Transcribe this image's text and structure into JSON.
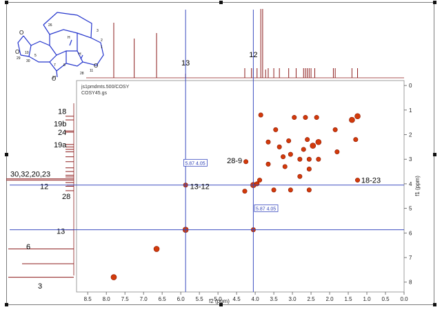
{
  "colors": {
    "spectrum": "#8b1a1a",
    "peak": "#d23a0a",
    "crosshair": "#3b4cc0",
    "structure": "#2233cc",
    "heteroatom": "#cc2200"
  },
  "header": {
    "line1": "js1pmdmts.500/COSY",
    "line2": "COSY45.gs"
  },
  "structure_labels": [
    "26",
    "H",
    "H",
    "28",
    "7",
    "8",
    "10",
    "11",
    "1",
    "2",
    "3",
    "5",
    "27",
    "29",
    "30",
    "O",
    "O",
    "O",
    "O"
  ],
  "top_trace_labels": [
    "13",
    "12"
  ],
  "left_trace_labels": [
    "18",
    "19b",
    "24",
    "19a",
    "30,32,20,23",
    "12",
    "28",
    "13",
    "6",
    "3"
  ],
  "chart_data": {
    "type": "scatter",
    "title": "",
    "xlabel": "f2 (ppm)",
    "ylabel": "f1 (ppm)",
    "xlim": [
      8.8,
      0.0
    ],
    "ylim": [
      8.4,
      -0.2
    ],
    "x_reversed": true,
    "y_reversed": true,
    "xticks": [
      "8.5",
      "8.0",
      "7.5",
      "7.0",
      "6.5",
      "6.0",
      "5.5",
      "5.0",
      "4.5",
      "4.0",
      "3.5",
      "3.0",
      "2.5",
      "2.0",
      "1.5",
      "1.0",
      "0.5",
      "0.0"
    ],
    "yticks": [
      "0",
      "1",
      "2",
      "3",
      "4",
      "5",
      "6",
      "7",
      "8"
    ],
    "crosshairs": {
      "x": [
        5.87,
        4.05
      ],
      "y": [
        4.05,
        5.87
      ]
    },
    "readouts": [
      "5.87 4.05",
      "5.87 4.05"
    ],
    "annotations": [
      "13-12",
      "28-9",
      "18-23"
    ],
    "peaks": [
      {
        "x": 7.8,
        "y": 7.8
      },
      {
        "x": 6.65,
        "y": 6.65
      },
      {
        "x": 5.87,
        "y": 5.87
      },
      {
        "x": 5.87,
        "y": 4.05
      },
      {
        "x": 4.05,
        "y": 5.87
      },
      {
        "x": 4.25,
        "y": 3.1
      },
      {
        "x": 4.28,
        "y": 4.3
      },
      {
        "x": 4.05,
        "y": 4.05
      },
      {
        "x": 3.95,
        "y": 4.0
      },
      {
        "x": 3.88,
        "y": 3.85
      },
      {
        "x": 3.85,
        "y": 1.2
      },
      {
        "x": 3.65,
        "y": 2.3
      },
      {
        "x": 3.65,
        "y": 3.2
      },
      {
        "x": 3.5,
        "y": 4.25
      },
      {
        "x": 3.45,
        "y": 1.8
      },
      {
        "x": 3.35,
        "y": 2.5
      },
      {
        "x": 3.25,
        "y": 2.9
      },
      {
        "x": 3.2,
        "y": 3.3
      },
      {
        "x": 3.1,
        "y": 2.25
      },
      {
        "x": 3.05,
        "y": 2.8
      },
      {
        "x": 3.05,
        "y": 4.25
      },
      {
        "x": 2.95,
        "y": 1.3
      },
      {
        "x": 2.8,
        "y": 3.0
      },
      {
        "x": 2.8,
        "y": 3.7
      },
      {
        "x": 2.7,
        "y": 2.6
      },
      {
        "x": 2.65,
        "y": 1.3
      },
      {
        "x": 2.6,
        "y": 2.2
      },
      {
        "x": 2.55,
        "y": 3.0
      },
      {
        "x": 2.55,
        "y": 3.4
      },
      {
        "x": 2.55,
        "y": 4.25
      },
      {
        "x": 2.45,
        "y": 2.45
      },
      {
        "x": 2.35,
        "y": 1.3
      },
      {
        "x": 2.3,
        "y": 2.3
      },
      {
        "x": 2.3,
        "y": 3.0
      },
      {
        "x": 1.85,
        "y": 1.8
      },
      {
        "x": 1.8,
        "y": 2.7
      },
      {
        "x": 1.4,
        "y": 1.4
      },
      {
        "x": 1.3,
        "y": 2.2
      },
      {
        "x": 1.25,
        "y": 1.25
      },
      {
        "x": 1.25,
        "y": 3.85
      }
    ],
    "top_projection_peaks": [
      7.8,
      7.25,
      6.65,
      5.87,
      4.28,
      4.1,
      4.05,
      3.95,
      3.85,
      3.8,
      3.72,
      3.65,
      3.5,
      3.35,
      3.1,
      2.9,
      2.7,
      2.65,
      2.6,
      2.55,
      2.5,
      2.4,
      1.9,
      1.85,
      1.4,
      1.25
    ],
    "left_projection_peaks": [
      1.25,
      1.4,
      1.85,
      1.9,
      2.4,
      2.5,
      2.6,
      2.7,
      2.9,
      3.1,
      3.35,
      3.5,
      3.65,
      3.72,
      3.8,
      3.85,
      3.95,
      4.05,
      4.1,
      4.28,
      5.87,
      6.65,
      7.25,
      7.8
    ]
  }
}
